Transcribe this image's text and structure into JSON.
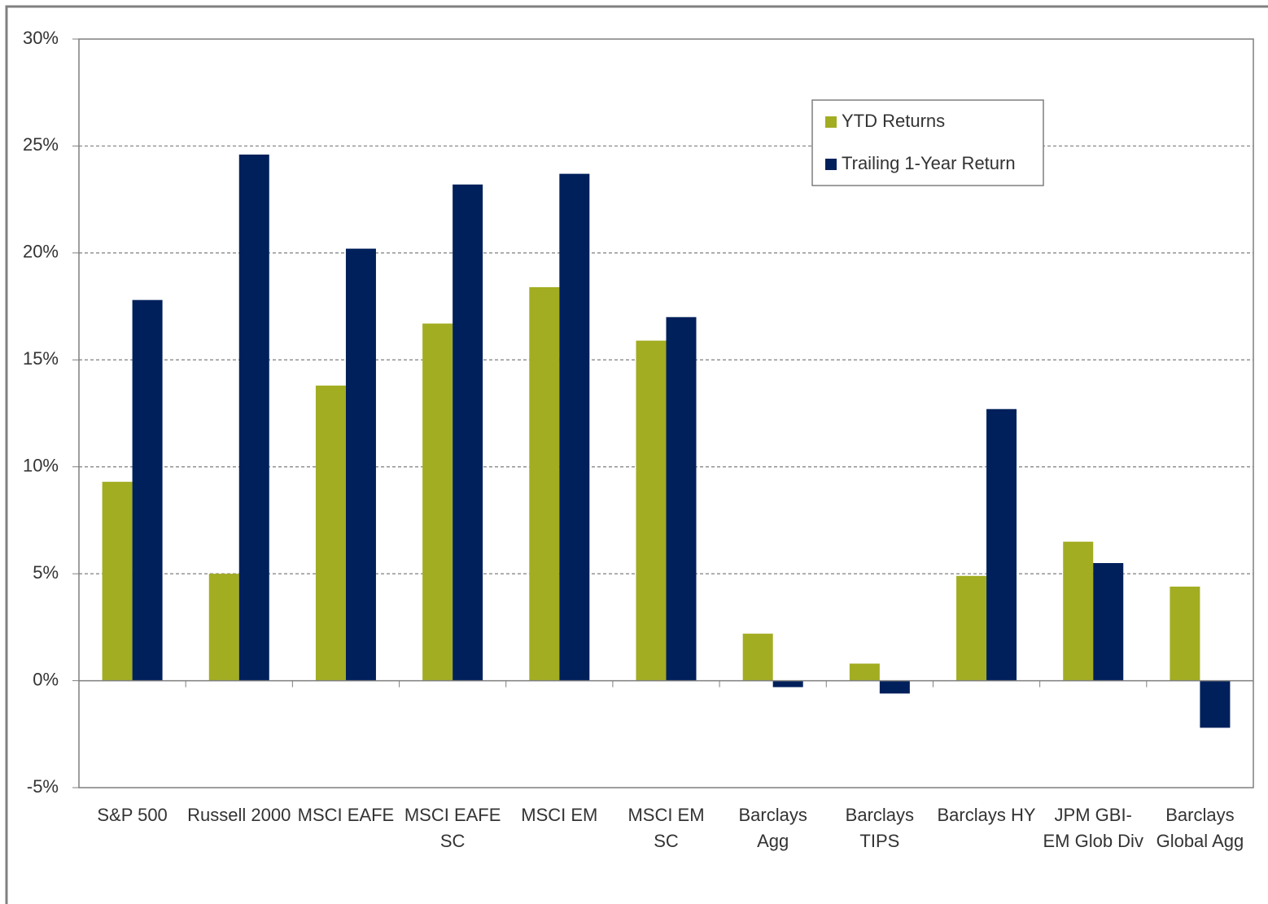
{
  "chart_data": {
    "type": "bar",
    "categories": [
      "S&P 500",
      "Russell 2000",
      "MSCI EAFE",
      "MSCI EAFE SC",
      "MSCI EM",
      "MSCI EM SC",
      "Barclays Agg",
      "Barclays TIPS",
      "Barclays HY",
      "JPM GBI-EM Glob Div",
      "Barclays Global Agg"
    ],
    "series": [
      {
        "name": "YTD Returns",
        "color": "#a2ad22",
        "values": [
          9.3,
          5.0,
          13.8,
          16.7,
          18.4,
          15.9,
          2.2,
          0.8,
          4.9,
          6.5,
          4.4
        ]
      },
      {
        "name": "Trailing 1-Year Return",
        "color": "#00205b",
        "values": [
          17.8,
          24.6,
          20.2,
          23.2,
          23.7,
          17.0,
          -0.3,
          -0.6,
          12.7,
          5.5,
          -2.2
        ]
      }
    ],
    "ylim": [
      -5,
      30
    ],
    "yticks": [
      {
        "value": -5,
        "label": "-5%"
      },
      {
        "value": 0,
        "label": "0%"
      },
      {
        "value": 5,
        "label": "5%"
      },
      {
        "value": 10,
        "label": "10%"
      },
      {
        "value": 15,
        "label": "15%"
      },
      {
        "value": 20,
        "label": "20%"
      },
      {
        "value": 25,
        "label": "25%"
      },
      {
        "value": 30,
        "label": "30%"
      }
    ],
    "grid": true,
    "legend": "upper right"
  }
}
